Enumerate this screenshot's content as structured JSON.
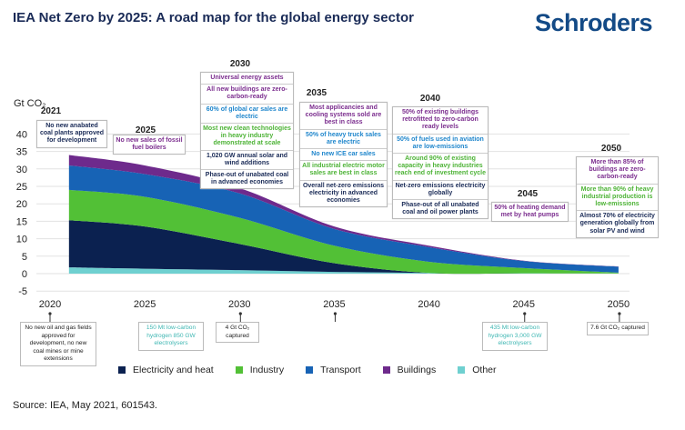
{
  "header": {
    "title": "IEA Net Zero by 2025: A road map for the global energy sector",
    "logo": "Schroders"
  },
  "source": "Source: IEA, May 2021, 601543.",
  "colors": {
    "purple": "#7b2d8e",
    "blue": "#1f86cc",
    "green": "#4db336",
    "navy": "#1a2b57",
    "teal": "#3fb7b3"
  },
  "milestones_top": [
    {
      "year": "2021",
      "items": [
        {
          "text": "No new anabated coal plants approved for development",
          "color": "#1a2b57"
        }
      ]
    },
    {
      "year": "2025",
      "items": [
        {
          "text": "No new sales of fossil fuel boilers",
          "color": "#7b2d8e"
        }
      ]
    },
    {
      "year": "2030",
      "items": [
        {
          "text": "Universal energy assets",
          "color": "#7b2d8e"
        },
        {
          "text": "All new buildings are zero-carbon-ready",
          "color": "#7b2d8e"
        },
        {
          "text": "60% of global car sales are electric",
          "color": "#1f86cc"
        },
        {
          "text": "Most new clean technologies in heavy industry demonstrated at scale",
          "color": "#4db336"
        },
        {
          "text": "1,020 GW annual solar and wind additions",
          "color": "#1a2b57"
        },
        {
          "text": "Phase-out of unabated coal in advanced economies",
          "color": "#1a2b57"
        }
      ]
    },
    {
      "year": "2035",
      "items": [
        {
          "text": "Most applicancies and cooling systems sold are best in class",
          "color": "#7b2d8e"
        },
        {
          "text": "50% of heavy truck sales are electric",
          "color": "#1f86cc"
        },
        {
          "text": "No new ICE car sales",
          "color": "#1f86cc"
        },
        {
          "text": "All industrial electric motor sales are best in class",
          "color": "#4db336"
        },
        {
          "text": "Overall net-zero emissions electricity in advanced economies",
          "color": "#1a2b57"
        }
      ]
    },
    {
      "year": "2040",
      "items": [
        {
          "text": "50% of existing buildings retrofitted to zero-carbon ready levels",
          "color": "#7b2d8e"
        },
        {
          "text": "50% of fuels used in aviation are low-emissions",
          "color": "#1f86cc"
        },
        {
          "text": "Around 90% of existing capacity in heavy industries reach end of investment cycle",
          "color": "#4db336"
        },
        {
          "text": "Net-zero emissions electricity globally",
          "color": "#1a2b57"
        },
        {
          "text": "Phase-out of all unabated coal and oil power plants",
          "color": "#1a2b57"
        }
      ]
    },
    {
      "year": "2045",
      "items": [
        {
          "text": "50% of heating demand met by heat pumps",
          "color": "#7b2d8e"
        }
      ]
    },
    {
      "year": "2050",
      "items": [
        {
          "text": "More than 85% of buildings are zero-carbon-ready",
          "color": "#7b2d8e"
        },
        {
          "text": "More than 90% of heavy industrial production is low-emissions",
          "color": "#4db336"
        },
        {
          "text": "Almost 70% of electricity generation globally from solar PV and wind",
          "color": "#1a2b57"
        }
      ]
    }
  ],
  "milestones_bottom": [
    {
      "year": "2020",
      "text": "No new oil and gas fields approved for development, no new coal mines or mine extensions",
      "color": "#222222"
    },
    {
      "year": "2030",
      "text": "150 Mt low-carbon hydrogen 850 GW electrolysers",
      "color": "#3fb7b3"
    },
    {
      "year": "2035",
      "text": "4 Gt CO₂ captured",
      "color": "#222222"
    },
    {
      "year": "2045",
      "text": "435 Mt low-carbon hydrogen 3,000 GW electrolysers",
      "color": "#3fb7b3"
    },
    {
      "year": "2050",
      "text": "7.6 Gt CO₂ captured",
      "color": "#222222"
    }
  ],
  "chart_data": {
    "type": "area",
    "stacked": true,
    "ylabel": "Gt CO₂",
    "ylim": [
      -5,
      40
    ],
    "yticks": [
      "40",
      "35",
      "30",
      "25",
      "20",
      "15",
      "10",
      "5",
      "0",
      "-5"
    ],
    "xticks": [
      "2020",
      "2025",
      "2030",
      "2035",
      "2040",
      "2045",
      "2050"
    ],
    "grid": true,
    "legend_position": "bottom",
    "x": [
      2021,
      2025,
      2030,
      2035,
      2040,
      2045,
      2050
    ],
    "series": [
      {
        "name": "Other",
        "color": "#6fd0d0",
        "values": [
          1.8,
          1.4,
          1.0,
          0.5,
          0.2,
          0.1,
          0.05
        ]
      },
      {
        "name": "Electricity and heat",
        "color": "#0b2150",
        "values": [
          13.5,
          12.1,
          7.5,
          2.5,
          0,
          0,
          0
        ]
      },
      {
        "name": "Industry",
        "color": "#52c036",
        "values": [
          8.7,
          8.5,
          7.5,
          5.0,
          3.2,
          1.5,
          0.25
        ]
      },
      {
        "name": "Transport",
        "color": "#1763b5",
        "values": [
          7.0,
          6.5,
          7.0,
          4.8,
          4.2,
          2.0,
          1.7
        ]
      },
      {
        "name": "Buildings",
        "color": "#6e2a8c",
        "values": [
          3.0,
          2.5,
          1.5,
          0.7,
          0.4,
          0.1,
          0.05
        ]
      }
    ],
    "legend": [
      "Electricity and heat",
      "Industry",
      "Transport",
      "Buildings",
      "Other"
    ]
  }
}
